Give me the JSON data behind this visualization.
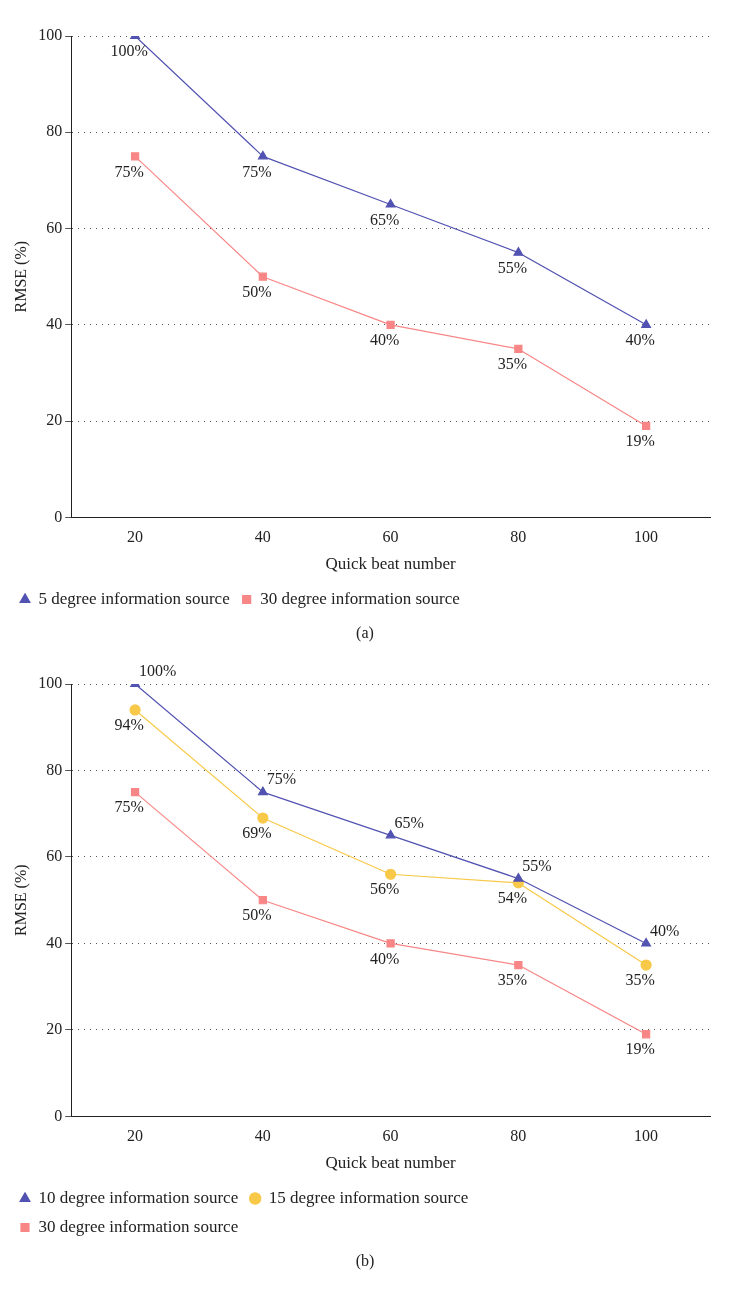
{
  "chart_data": [
    {
      "type": "line",
      "xlabel": "Quick beat number",
      "ylabel": "RMSE (%)",
      "categories": [
        "20",
        "40",
        "60",
        "80",
        "100"
      ],
      "ylim": [
        0,
        100
      ],
      "yticks": [
        0,
        20,
        40,
        60,
        80,
        100
      ],
      "grid": "y",
      "legend": "bottom left",
      "annotations": [
        "(a)"
      ],
      "series": [
        {
          "name": "5 degree information source",
          "color": "#5252b2",
          "marker": "triangle",
          "values": [
            100,
            75,
            65,
            55,
            40
          ],
          "value_labels": [
            "100%",
            "75%",
            "65%",
            "55%",
            "40%"
          ]
        },
        {
          "name": "30 degree information source",
          "color": "#f88686",
          "marker": "square",
          "values": [
            75,
            50,
            40,
            35,
            19
          ],
          "value_labels": [
            "75%",
            "50%",
            "40%",
            "35%",
            "19%"
          ]
        }
      ]
    },
    {
      "type": "line",
      "xlabel": "Quick beat number",
      "ylabel": "RMSE (%)",
      "categories": [
        "20",
        "40",
        "60",
        "80",
        "100"
      ],
      "ylim": [
        0,
        100
      ],
      "yticks": [
        0,
        20,
        40,
        60,
        80,
        100
      ],
      "grid": "y",
      "legend": "bottom left",
      "annotations": [
        "(b)"
      ],
      "series": [
        {
          "name": "10 degree information source",
          "color": "#5252b2",
          "marker": "triangle",
          "values": [
            100,
            75,
            65,
            55,
            40
          ],
          "value_labels": [
            "100%",
            "75%",
            "65%",
            "55%",
            "40%"
          ]
        },
        {
          "name": "15 degree information source",
          "color": "#f8c848",
          "marker": "circle",
          "values": [
            94,
            69,
            56,
            54,
            35
          ],
          "value_labels": [
            "94%",
            "69%",
            "56%",
            "54%",
            "35%"
          ]
        },
        {
          "name": "30 degree information source",
          "color": "#f88686",
          "marker": "square",
          "values": [
            75,
            50,
            40,
            35,
            19
          ],
          "value_labels": [
            "75%",
            "50%",
            "40%",
            "35%",
            "19%"
          ]
        }
      ]
    }
  ]
}
